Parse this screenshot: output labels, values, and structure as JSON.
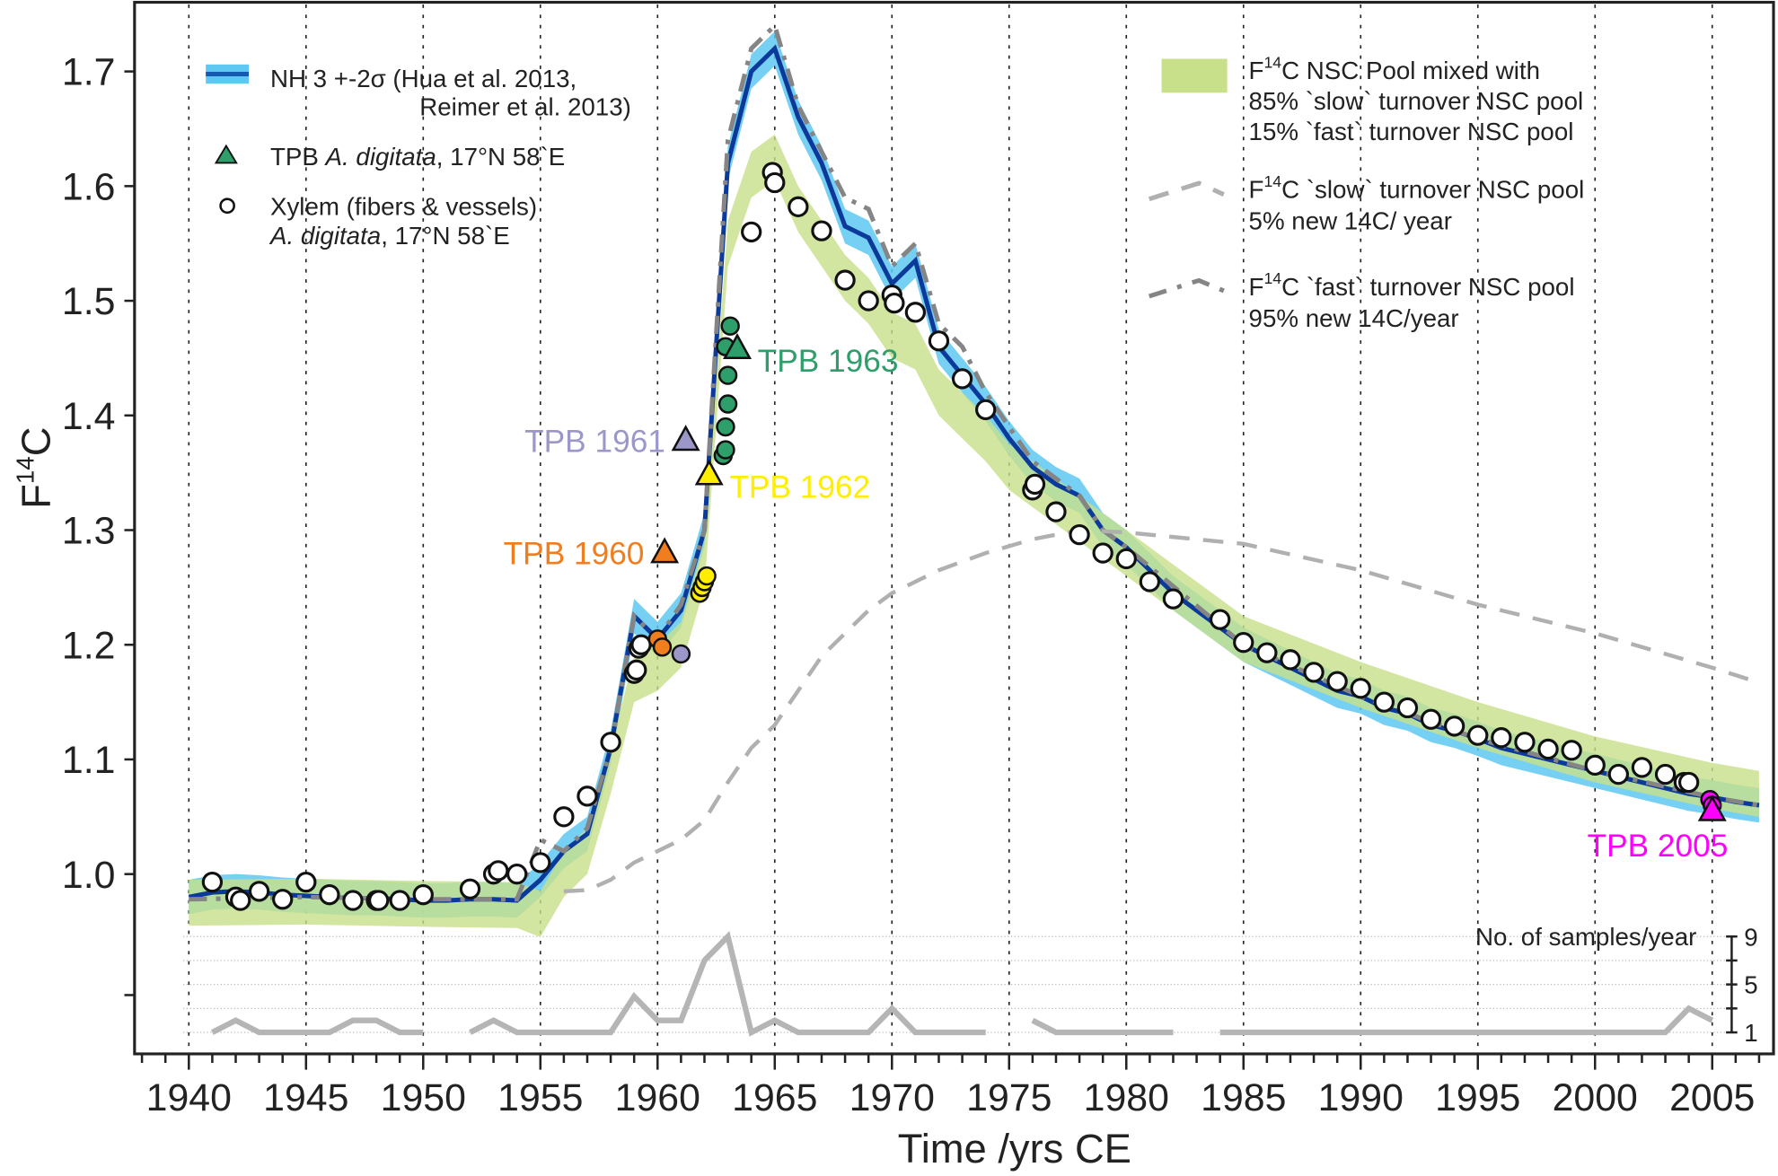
{
  "chart_data": {
    "type": "line",
    "xlabel": "Time /yrs CE",
    "ylabel": {
      "base": "F",
      "sup": "14",
      "tail": "C"
    },
    "xlim": [
      1937.7,
      2007.7
    ],
    "ylim": [
      0.85,
      1.76
    ],
    "xticks": [
      "1940",
      "1945",
      "1950",
      "1955",
      "1960",
      "1965",
      "1970",
      "1975",
      "1980",
      "1985",
      "1990",
      "1995",
      "2000",
      "2005"
    ],
    "yticks": [
      "1.0",
      "1.1",
      "1.2",
      "1.3",
      "1.4",
      "1.5",
      "1.6",
      "1.7"
    ],
    "legend": {
      "nh": {
        "line1": "NH 3 +-2σ (Hua et al. 2013,",
        "line2": "Reimer et al. 2013)"
      },
      "tpb": {
        "pre": "TPB ",
        "italic": "A. digitata",
        "post": ", 17°N 58`E"
      },
      "xylem": {
        "line1": "Xylem (fibers & vessels)",
        "italic": "A. digitata",
        "post": ", 17°N 58`E"
      },
      "mixed": {
        "base": "F",
        "sup": "14",
        "line1": "C NSC Pool mixed with",
        "line2": "85% `slow` turnover NSC pool",
        "line3": "15% `fast` turnover NSC pool"
      },
      "slow": {
        "base": "F",
        "sup": "14",
        "line1": "C `slow` turnover NSC pool",
        "line2": "5% new 14C/ year"
      },
      "fast": {
        "base": "F",
        "sup": "14",
        "line1": "C `fast` turnover NSC pool",
        "line2": "95% new 14C/year"
      }
    },
    "colors": {
      "nh_band": "#5ec8f2",
      "nh_line": "#0b3a9b",
      "mixed": "#c8e08a",
      "slow": "#b0b0b0",
      "fast": "#858585",
      "samples": "#b5b5b5"
    },
    "nh": {
      "x": [
        1940,
        1941,
        1942,
        1943,
        1944,
        1945,
        1946,
        1947,
        1948,
        1949,
        1950,
        1951,
        1952,
        1953,
        1954,
        1955,
        1956,
        1957,
        1958,
        1959,
        1960,
        1961,
        1962,
        1963,
        1964,
        1965,
        1966,
        1967,
        1968,
        1969,
        1970,
        1971,
        1972,
        1973,
        1974,
        1975,
        1976,
        1977,
        1978,
        1979,
        1980,
        1981,
        1982,
        1983,
        1984,
        1985,
        1986,
        1987,
        1988,
        1989,
        1990,
        1991,
        1992,
        1993,
        1994,
        1995,
        1996,
        1997,
        1998,
        1999,
        2000,
        2001,
        2002,
        2003,
        2004,
        2005,
        2006,
        2007
      ],
      "y": [
        0.98,
        0.984,
        0.985,
        0.984,
        0.982,
        0.981,
        0.98,
        0.979,
        0.979,
        0.978,
        0.977,
        0.977,
        0.978,
        0.978,
        0.977,
        0.995,
        1.02,
        1.035,
        1.11,
        1.225,
        1.205,
        1.23,
        1.3,
        1.62,
        1.7,
        1.72,
        1.66,
        1.62,
        1.565,
        1.555,
        1.515,
        1.535,
        1.46,
        1.435,
        1.41,
        1.38,
        1.355,
        1.34,
        1.33,
        1.3,
        1.285,
        1.265,
        1.245,
        1.23,
        1.215,
        1.2,
        1.19,
        1.18,
        1.17,
        1.16,
        1.155,
        1.145,
        1.14,
        1.13,
        1.125,
        1.118,
        1.11,
        1.105,
        1.1,
        1.095,
        1.09,
        1.085,
        1.08,
        1.075,
        1.07,
        1.067,
        1.063,
        1.06
      ],
      "sigma2": 0.015
    },
    "fast": {
      "x": [
        1940,
        1945,
        1950,
        1954,
        1955,
        1956,
        1957,
        1958,
        1959,
        1960,
        1961,
        1962,
        1963,
        1964,
        1965,
        1966,
        1967,
        1968,
        1969,
        1970,
        1971,
        1972,
        1973,
        1974,
        1975,
        1976,
        1977,
        1978,
        1979,
        1980,
        1985,
        1990,
        1995,
        2000,
        2005,
        2007
      ],
      "y": [
        0.978,
        0.98,
        0.978,
        0.978,
        1.03,
        1.02,
        1.04,
        1.11,
        1.225,
        1.205,
        1.235,
        1.3,
        1.64,
        1.72,
        1.74,
        1.67,
        1.63,
        1.59,
        1.58,
        1.53,
        1.55,
        1.48,
        1.46,
        1.42,
        1.39,
        1.36,
        1.345,
        1.33,
        1.3,
        1.285,
        1.2,
        1.155,
        1.118,
        1.09,
        1.067,
        1.06
      ]
    },
    "slow": {
      "x": [
        1956,
        1957,
        1958,
        1959,
        1960,
        1961,
        1962,
        1963,
        1964,
        1965,
        1966,
        1967,
        1968,
        1969,
        1970,
        1972,
        1974,
        1976,
        1978,
        1980,
        1985,
        1990,
        1995,
        2000,
        2005,
        2007
      ],
      "y": [
        0.985,
        0.986,
        0.995,
        1.01,
        1.02,
        1.03,
        1.047,
        1.08,
        1.11,
        1.13,
        1.16,
        1.19,
        1.21,
        1.23,
        1.245,
        1.265,
        1.28,
        1.292,
        1.3,
        1.298,
        1.288,
        1.265,
        1.235,
        1.21,
        1.18,
        1.167
      ]
    },
    "mixed": {
      "x": [
        1940,
        1945,
        1950,
        1954,
        1955,
        1956,
        1957,
        1958,
        1959,
        1960,
        1961,
        1962,
        1963,
        1964,
        1965,
        1966,
        1967,
        1968,
        1969,
        1970,
        1971,
        1972,
        1973,
        1974,
        1975,
        1976,
        1977,
        1978,
        1979,
        1980,
        1985,
        1990,
        1995,
        2000,
        2005,
        2007
      ],
      "y": [
        0.975,
        0.976,
        0.974,
        0.973,
        0.965,
        1.0,
        1.02,
        1.09,
        1.17,
        1.18,
        1.2,
        1.27,
        1.55,
        1.61,
        1.625,
        1.58,
        1.55,
        1.52,
        1.5,
        1.47,
        1.46,
        1.42,
        1.4,
        1.38,
        1.355,
        1.34,
        1.325,
        1.31,
        1.295,
        1.28,
        1.205,
        1.165,
        1.13,
        1.1,
        1.077,
        1.07
      ],
      "halfwidth": 0.02
    },
    "xylem": {
      "x": [
        1941,
        1942,
        1942.2,
        1943,
        1944,
        1945,
        1946,
        1947,
        1948,
        1948.1,
        1949,
        1950,
        1952,
        1953,
        1953.2,
        1954,
        1955,
        1956,
        1957,
        1958,
        1959,
        1959.1,
        1959.2,
        1959.3,
        1964,
        1964.9,
        1965,
        1966,
        1967,
        1968,
        1969,
        1970,
        1970.1,
        1971,
        1972,
        1973,
        1974,
        1976,
        1976.1,
        1977,
        1978,
        1979,
        1980,
        1981,
        1982,
        1984,
        1985,
        1986,
        1987,
        1988,
        1989,
        1990,
        1991,
        1992,
        1993,
        1994,
        1995,
        1996,
        1997,
        1998,
        1999,
        2000,
        2001,
        2002,
        2003,
        2003.8,
        2004
      ],
      "y": [
        0.993,
        0.98,
        0.977,
        0.985,
        0.978,
        0.993,
        0.982,
        0.977,
        0.977,
        0.977,
        0.977,
        0.982,
        0.987,
        1.0,
        1.003,
        1.0,
        1.01,
        1.05,
        1.068,
        1.115,
        1.175,
        1.178,
        1.197,
        1.2,
        1.56,
        1.612,
        1.603,
        1.582,
        1.561,
        1.518,
        1.5,
        1.505,
        1.498,
        1.49,
        1.465,
        1.432,
        1.405,
        1.335,
        1.34,
        1.316,
        1.296,
        1.28,
        1.275,
        1.255,
        1.24,
        1.222,
        1.202,
        1.193,
        1.187,
        1.176,
        1.168,
        1.162,
        1.15,
        1.145,
        1.135,
        1.129,
        1.121,
        1.119,
        1.115,
        1.109,
        1.108,
        1.095,
        1.087,
        1.093,
        1.087,
        1.08,
        1.08
      ]
    },
    "tpb": [
      {
        "label": "TPB 1960",
        "color": "#f07d1e",
        "tri": [
          1960.3,
          1.28
        ],
        "circles": [
          [
            1960.0,
            1.205
          ],
          [
            1960.2,
            1.198
          ]
        ],
        "label_side": "left"
      },
      {
        "label": "TPB 1961",
        "color": "#9c97c9",
        "tri": [
          1961.2,
          1.378
        ],
        "circles": [
          [
            1961.0,
            1.192
          ]
        ],
        "label_side": "left"
      },
      {
        "label": "TPB 1962",
        "color": "#ffee00",
        "tri": [
          1962.2,
          1.348
        ],
        "circles": [
          [
            1961.8,
            1.245
          ],
          [
            1961.9,
            1.25
          ],
          [
            1962.0,
            1.255
          ],
          [
            1962.1,
            1.26
          ]
        ],
        "label_side": "right"
      },
      {
        "label": "TPB 1963",
        "color": "#2e9e6a",
        "tri": [
          1963.4,
          1.458
        ],
        "circles": [
          [
            1962.8,
            1.365
          ],
          [
            1962.9,
            1.37
          ],
          [
            1962.9,
            1.39
          ],
          [
            1963.0,
            1.41
          ],
          [
            1963.0,
            1.435
          ],
          [
            1962.9,
            1.46
          ],
          [
            1963.1,
            1.478
          ]
        ],
        "label_side": "right"
      },
      {
        "label": "TPB 2005",
        "color": "#ff00ff",
        "tri": [
          2005.0,
          1.055
        ],
        "circles": [
          [
            2004.9,
            1.065
          ],
          [
            2005.0,
            1.06
          ]
        ],
        "label_side": "below"
      }
    ],
    "samples": {
      "label": "No. of samples/year",
      "ticks": [
        "9",
        "5",
        "1"
      ],
      "segments": [
        {
          "x": [
            1941,
            1942,
            1943,
            1944,
            1945,
            1946,
            1947,
            1948,
            1949,
            1950
          ],
          "y": [
            1,
            2,
            1,
            1,
            1,
            1,
            2,
            2,
            1,
            1
          ]
        },
        {
          "x": [
            1952,
            1953,
            1954,
            1955,
            1956,
            1957,
            1958,
            1959,
            1960,
            1961,
            1962,
            1963,
            1964,
            1965,
            1966,
            1967,
            1968,
            1969,
            1970,
            1971,
            1972,
            1973,
            1974
          ],
          "y": [
            1,
            2,
            1,
            1,
            1,
            1,
            1,
            4,
            2,
            2,
            7,
            9,
            1,
            2,
            1,
            1,
            1,
            1,
            3,
            1,
            1,
            1,
            1
          ]
        },
        {
          "x": [
            1976,
            1977,
            1978,
            1979,
            1980,
            1981,
            1982
          ],
          "y": [
            2,
            1,
            1,
            1,
            1,
            1,
            1
          ]
        },
        {
          "x": [
            1984,
            1990,
            1995,
            2000,
            2003,
            2004,
            2005
          ],
          "y": [
            1,
            1,
            1,
            1,
            1,
            3,
            2
          ]
        }
      ]
    }
  }
}
